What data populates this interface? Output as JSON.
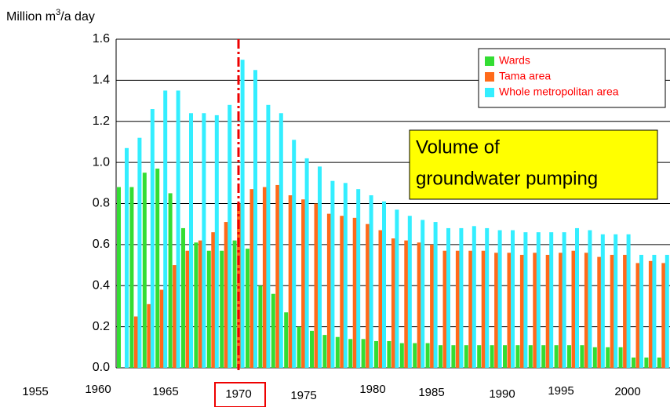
{
  "chart_data": {
    "type": "bar",
    "ylabel": [
      "Million m",
      "3",
      "/a day"
    ],
    "annotation": [
      "Volume of",
      "groundwater pumping"
    ],
    "highlight": "1970",
    "years_from": 1961,
    "xticks": [
      "1955",
      "1960",
      "1965",
      "1970",
      "1975",
      "1980",
      "1985",
      "1990",
      "1995",
      "2000"
    ],
    "ylim": [
      0,
      1.6
    ],
    "yticks": [
      {
        "value": 0,
        "label": "0.0"
      },
      0.2,
      0.4,
      0.6,
      0.8,
      {
        "value": 1,
        "label": "1.0"
      },
      1.2,
      1.4,
      1.6
    ],
    "grid": true,
    "legend": "upper right",
    "series": [
      {
        "name": "Wards",
        "color": "#33dd33",
        "values": [
          0.88,
          0.88,
          0.95,
          0.97,
          0.85,
          0.68,
          0.61,
          0.57,
          0.57,
          0.62,
          0.58,
          0.4,
          0.36,
          0.27,
          0.2,
          0.18,
          0.16,
          0.15,
          0.14,
          0.14,
          0.13,
          0.13,
          0.12,
          0.12,
          0.12,
          0.11,
          0.11,
          0.11,
          0.11,
          0.11,
          0.11,
          0.11,
          0.11,
          0.11,
          0.11,
          0.11,
          0.11,
          0.1,
          0.1,
          0.1,
          0.05,
          0.05,
          0.05
        ]
      },
      {
        "name": "Tama area",
        "color": "#ff6a1a",
        "values": [
          null,
          0.25,
          0.31,
          0.38,
          0.5,
          0.57,
          0.62,
          0.66,
          0.71,
          0.8,
          0.87,
          0.88,
          0.89,
          0.84,
          0.82,
          0.8,
          0.75,
          0.74,
          0.73,
          0.7,
          0.67,
          0.63,
          0.62,
          0.61,
          0.6,
          0.57,
          0.57,
          0.57,
          0.57,
          0.56,
          0.56,
          0.55,
          0.56,
          0.55,
          0.56,
          0.57,
          0.56,
          0.54,
          0.55,
          0.55,
          0.51,
          0.52,
          0.51
        ]
      },
      {
        "name": "Whole metropolitan area",
        "color": "#33eeff",
        "values": [
          1.07,
          1.12,
          1.26,
          1.35,
          1.35,
          1.24,
          1.24,
          1.23,
          1.28,
          1.5,
          1.45,
          1.28,
          1.24,
          1.11,
          1.02,
          0.98,
          0.91,
          0.9,
          0.87,
          0.84,
          0.81,
          0.77,
          0.74,
          0.72,
          0.71,
          0.68,
          0.68,
          0.69,
          0.68,
          0.67,
          0.67,
          0.66,
          0.66,
          0.66,
          0.66,
          0.68,
          0.67,
          0.65,
          0.65,
          0.65,
          0.55,
          0.55,
          0.55
        ]
      }
    ]
  }
}
